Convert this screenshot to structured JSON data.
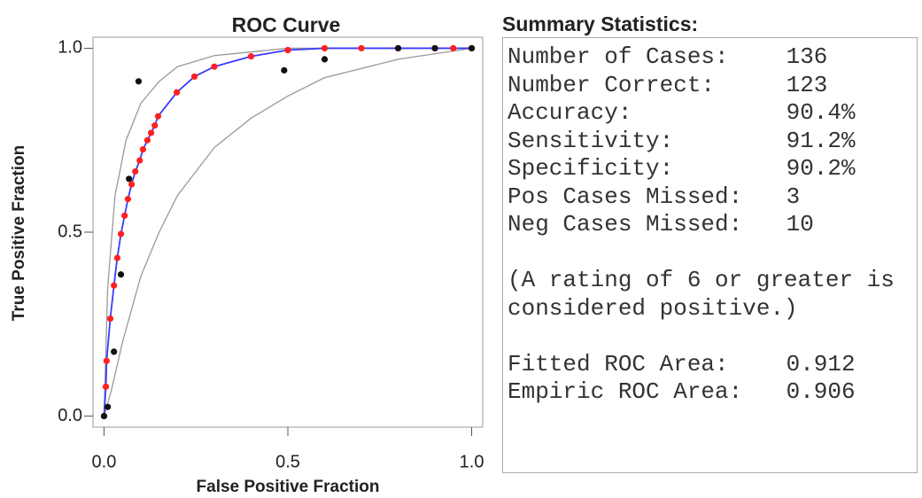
{
  "chart_data": {
    "type": "scatter",
    "title": "ROC Curve",
    "x_label": "False Positive Fraction",
    "y_label": "True Positive Fraction",
    "xlim": [
      -0.03,
      1.03
    ],
    "ylim": [
      -0.03,
      1.03
    ],
    "xticks": [
      {
        "value": 0,
        "label": "0.0"
      },
      {
        "value": 0.5,
        "label": "0.5"
      },
      {
        "value": 1,
        "label": "1.0"
      }
    ],
    "yticks": [
      {
        "value": 0,
        "label": "0.0"
      },
      {
        "value": 0.5,
        "label": "0.5"
      },
      {
        "value": 1,
        "label": "1.0"
      }
    ],
    "series": [
      {
        "color": "#999999",
        "style": "line",
        "x": [
          0,
          0.01,
          0.03,
          0.06,
          0.1,
          0.15,
          0.2,
          0.3,
          0.5,
          1
        ],
        "values": [
          0,
          0.35,
          0.6,
          0.75,
          0.85,
          0.91,
          0.95,
          0.98,
          1.0,
          1.0
        ]
      },
      {
        "color": "#999999",
        "style": "line",
        "x": [
          0,
          0.02,
          0.05,
          0.1,
          0.15,
          0.2,
          0.3,
          0.4,
          0.5,
          0.6,
          0.8,
          1
        ],
        "values": [
          0,
          0.07,
          0.2,
          0.38,
          0.5,
          0.6,
          0.73,
          0.81,
          0.87,
          0.92,
          0.97,
          1.0
        ]
      },
      {
        "color": "#3a3aff",
        "marker_color": "#ff2020",
        "style": "line-markers",
        "x": [
          0,
          0.005,
          0.007,
          0.017,
          0.027,
          0.036,
          0.046,
          0.056,
          0.065,
          0.075,
          0.085,
          0.097,
          0.106,
          0.118,
          0.128,
          0.138,
          0.147,
          0.198,
          0.246,
          0.3,
          0.4,
          0.5,
          0.6,
          0.7,
          0.8,
          0.9,
          0.95,
          1
        ],
        "values": [
          0,
          0.08,
          0.15,
          0.265,
          0.355,
          0.43,
          0.495,
          0.545,
          0.59,
          0.63,
          0.665,
          0.695,
          0.725,
          0.75,
          0.77,
          0.79,
          0.815,
          0.88,
          0.923,
          0.95,
          0.978,
          0.995,
          1.0,
          1.0,
          1.0,
          1.0,
          1.0,
          1.0
        ]
      },
      {
        "color": "#111111",
        "style": "markers",
        "x": [
          0,
          0.01,
          0.027,
          0.046,
          0.068,
          0.094,
          0.49,
          0.6,
          0.8,
          0.9,
          1
        ],
        "values": [
          0,
          0.025,
          0.175,
          0.385,
          0.645,
          0.91,
          0.94,
          0.97,
          1.0,
          1.0,
          1.0
        ]
      }
    ]
  },
  "summary": {
    "title": "Summary Statistics:",
    "stats": [
      {
        "label": "Number of Cases:",
        "value": "136"
      },
      {
        "label": "Number Correct:",
        "value": "123"
      },
      {
        "label": "Accuracy:",
        "value": "90.4%"
      },
      {
        "label": "Sensitivity:",
        "value": "91.2%"
      },
      {
        "label": "Specificity:",
        "value": "90.2%"
      },
      {
        "label": "Pos Cases Missed:",
        "value": "3"
      },
      {
        "label": "Neg Cases Missed:",
        "value": "10"
      }
    ],
    "note": "(A rating of 6 or greater is considered positive.)",
    "areas": [
      {
        "label": "Fitted ROC Area:",
        "value": "0.912"
      },
      {
        "label": "Empiric ROC Area:",
        "value": "0.906"
      }
    ]
  }
}
